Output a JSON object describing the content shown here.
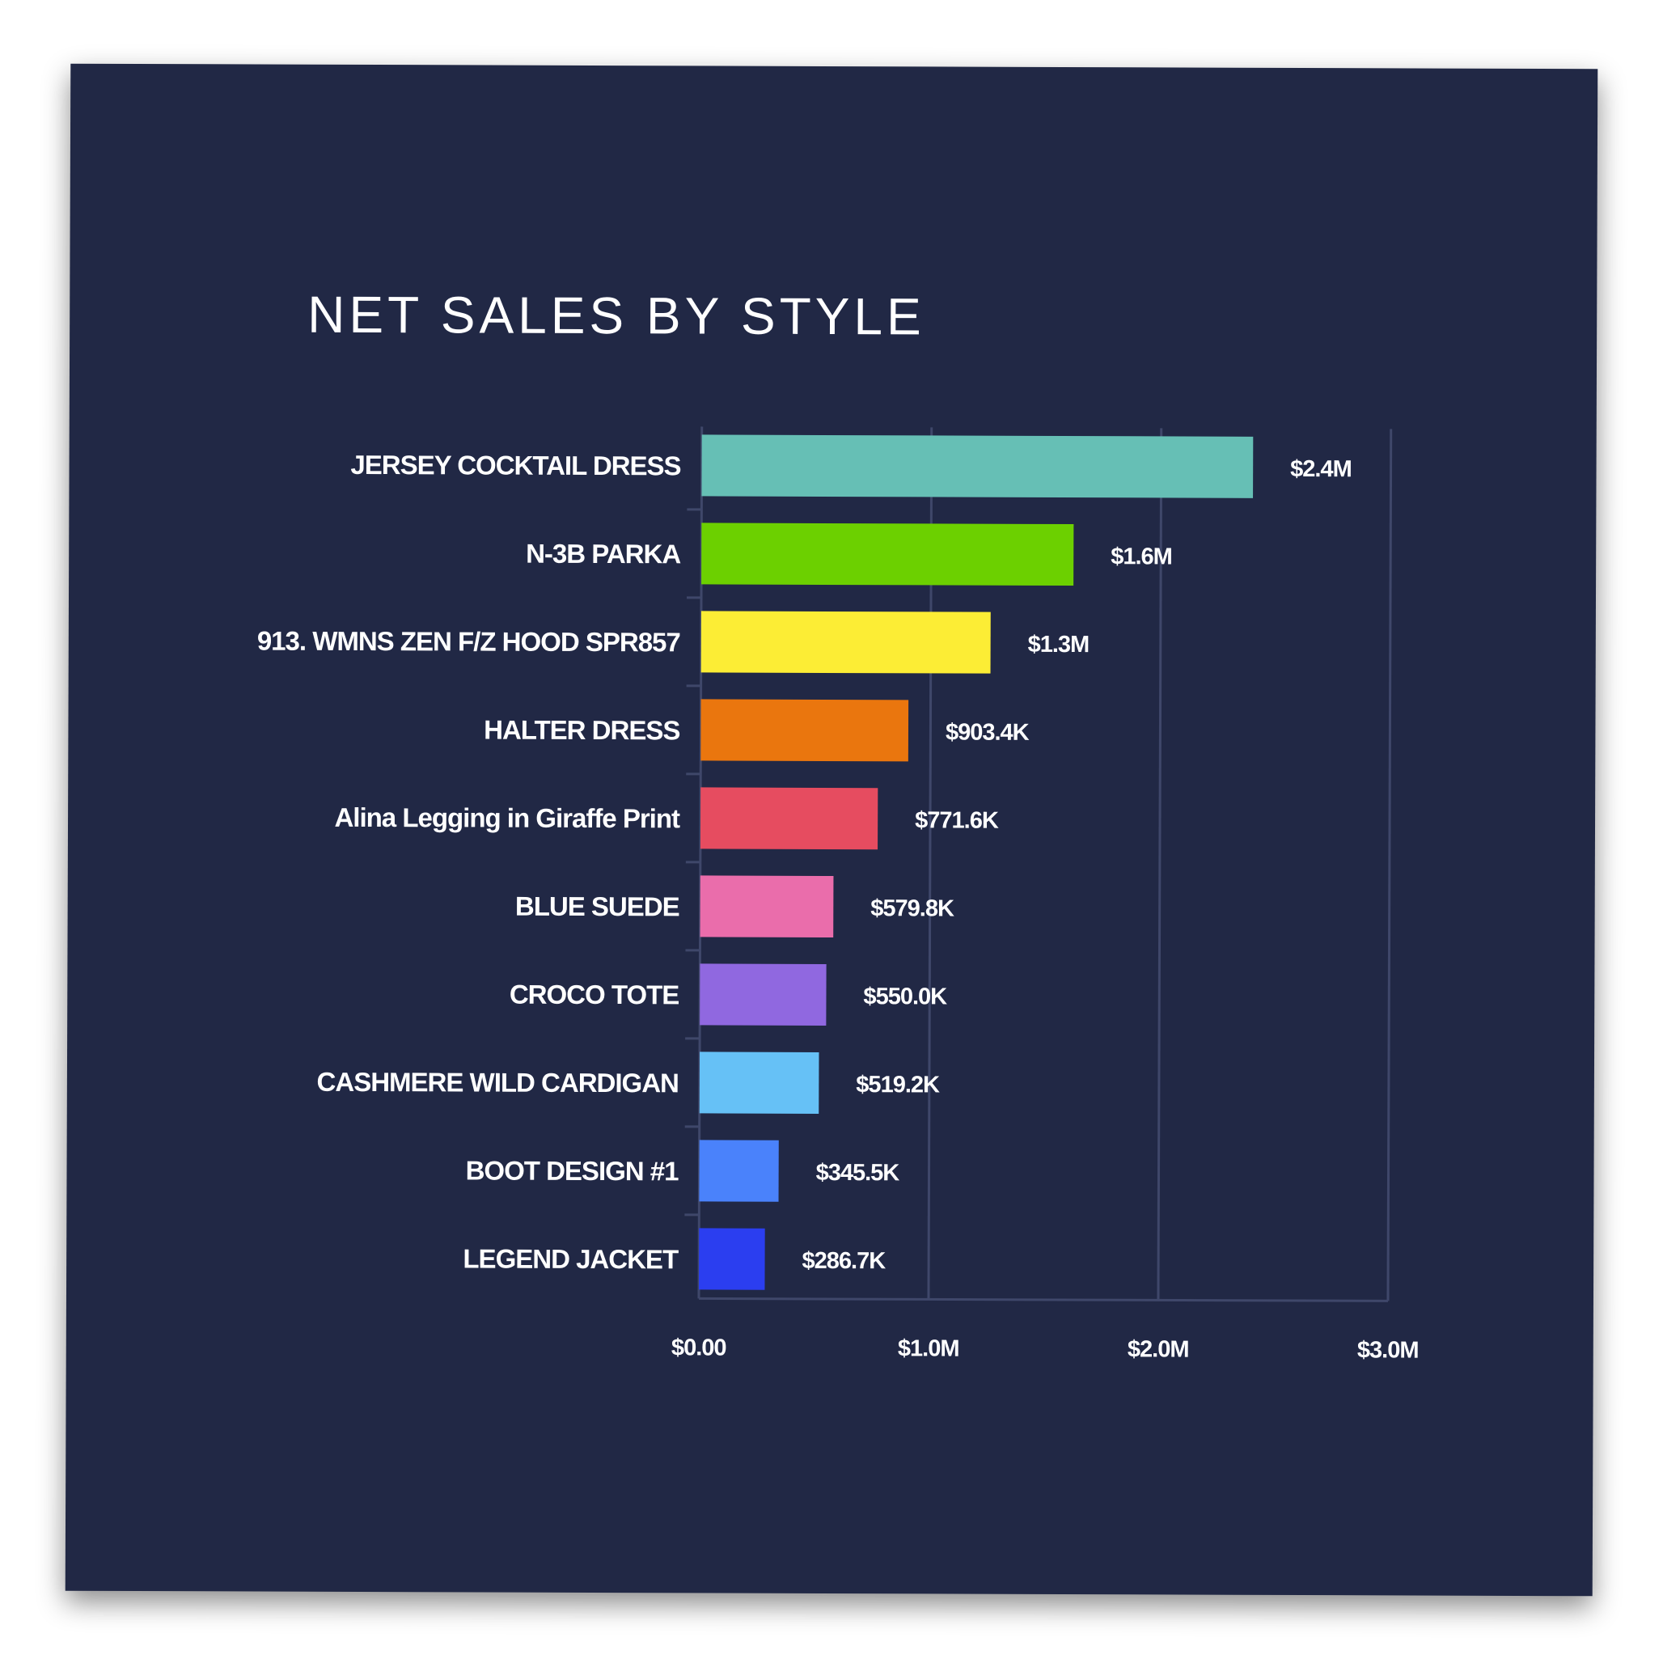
{
  "chart_data": {
    "type": "bar",
    "orientation": "horizontal",
    "title": "NET SALES BY STYLE",
    "xlabel": "",
    "ylabel": "",
    "xlim": [
      0,
      3000000
    ],
    "ticks": [
      0,
      1000000,
      2000000,
      3000000
    ],
    "tick_labels": [
      "$0.00",
      "$1.0M",
      "$2.0M",
      "$3.0M"
    ],
    "grid": true,
    "categories": [
      "JERSEY COCKTAIL DRESS",
      "N-3B PARKA",
      "913. WMNS ZEN F/Z HOOD SPR857",
      "HALTER DRESS",
      "Alina Legging in Giraffe Print",
      "BLUE SUEDE",
      "CROCO TOTE",
      "CASHMERE WILD CARDIGAN",
      "BOOT DESIGN #1",
      "LEGEND JACKET"
    ],
    "values": [
      2400000,
      1620000,
      1260000,
      903400,
      771600,
      579800,
      550000,
      519200,
      345500,
      286700
    ],
    "value_labels": [
      "$2.4M",
      "$1.6M",
      "$1.3M",
      "$903.4K",
      "$771.6K",
      "$579.8K",
      "$550.0K",
      "$519.2K",
      "$345.5K",
      "$286.7K"
    ],
    "colors": [
      "#66bfb5",
      "#6cd000",
      "#fced35",
      "#ea760e",
      "#e64c60",
      "#ea6dab",
      "#9068e0",
      "#66c1f6",
      "#4a82fb",
      "#2b3ef0"
    ]
  },
  "style": {
    "background": "#212845",
    "page_background": "#ffffff",
    "grid_color": "#3f476a",
    "text_color": "#ffffff"
  }
}
